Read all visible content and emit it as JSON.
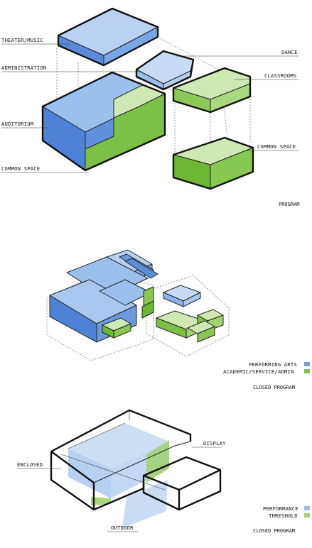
{
  "colors": {
    "performance_blue": "#6f9ee0",
    "performance_blue_light": "#c4d9f3",
    "academic_green": "#7dc046",
    "academic_green_light": "#cde8b3",
    "line": "#111111"
  },
  "diagram1": {
    "labels": {
      "theater_music": "THEATER/MUSIC",
      "administration": "ADMINISTRATION",
      "auditorium": "AUDITORIUM",
      "common_space_left": "COMMON SPACE",
      "dance": "DANCE",
      "classrooms": "CLASSROOMS",
      "common_space_right": "COMMON SPACE"
    },
    "caption": "PROGRAM"
  },
  "diagram2": {
    "legend": [
      {
        "label": "PERFORMING ARTS",
        "color": "#6f9ee0"
      },
      {
        "label": "ACADEMIC/SERVICE/ADMIN",
        "color": "#7dc046"
      }
    ],
    "caption": "CLOSED PROGRAM"
  },
  "diagram3": {
    "labels": {
      "enclosed": "ENCLOSED",
      "display": "DISPLAY",
      "outdoor": "OUTDOOR"
    },
    "legend": [
      {
        "label": "PERFORMANCE",
        "color": "#9cc0ee"
      },
      {
        "label": "THRESHOLD",
        "color": "#9fd46e"
      }
    ],
    "caption": "CLOSED PROGRAM"
  }
}
